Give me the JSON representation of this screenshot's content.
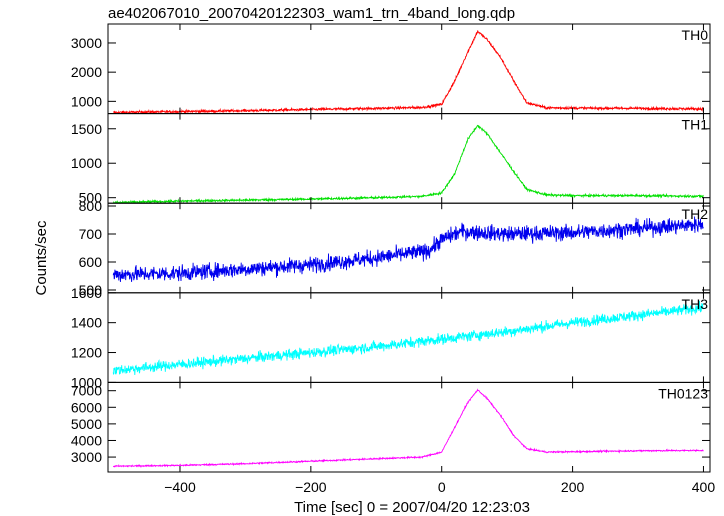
{
  "chart_data": {
    "type": "line",
    "title": "ae402067010_20070420122303_wam1_trn_4band_long.qdp",
    "xlabel": "Time [sec] 0 = 2007/04/20 12:23:03",
    "ylabel": "Counts/sec",
    "xlim": [
      -510,
      410
    ],
    "x_ticks": [
      -400,
      -200,
      0,
      200,
      400
    ],
    "grid": false,
    "panels": [
      {
        "name": "TH0",
        "color": "#ff0000",
        "ylim": [
          580,
          3650
        ],
        "y_ticks": [
          1000,
          2000,
          3000
        ],
        "noise": 60,
        "x": [
          -500,
          -400,
          -300,
          -200,
          -100,
          -30,
          0,
          20,
          40,
          55,
          70,
          90,
          110,
          130,
          160,
          200,
          300,
          400
        ],
        "y": [
          620,
          650,
          680,
          720,
          760,
          790,
          900,
          1700,
          2700,
          3400,
          3100,
          2500,
          1700,
          950,
          780,
          770,
          760,
          740
        ]
      },
      {
        "name": "TH1",
        "color": "#00e000",
        "ylim": [
          420,
          1720
        ],
        "y_ticks": [
          500,
          1000,
          1500
        ],
        "noise": 22,
        "x": [
          -500,
          -400,
          -300,
          -200,
          -100,
          -30,
          0,
          20,
          40,
          55,
          70,
          90,
          110,
          130,
          160,
          200,
          300,
          400
        ],
        "y": [
          430,
          450,
          465,
          480,
          500,
          520,
          570,
          850,
          1350,
          1550,
          1420,
          1150,
          880,
          620,
          540,
          530,
          530,
          520
        ]
      },
      {
        "name": "TH2",
        "color": "#0000ee",
        "ylim": [
          490,
          810
        ],
        "y_ticks": [
          500,
          600,
          700,
          800
        ],
        "noise": 40,
        "x": [
          -500,
          -400,
          -300,
          -200,
          -100,
          -20,
          0,
          30,
          60,
          100,
          200,
          300,
          400
        ],
        "y": [
          555,
          560,
          575,
          590,
          615,
          640,
          680,
          710,
          705,
          700,
          705,
          720,
          735
        ]
      },
      {
        "name": "TH3",
        "color": "#00ffff",
        "ylim": [
          1000,
          1600
        ],
        "y_ticks": [
          1000,
          1200,
          1400,
          1600
        ],
        "noise": 50,
        "x": [
          -500,
          -400,
          -300,
          -200,
          -100,
          0,
          100,
          200,
          300,
          400
        ],
        "y": [
          1080,
          1120,
          1160,
          1200,
          1240,
          1290,
          1340,
          1400,
          1450,
          1500
        ]
      },
      {
        "name": "TH0123",
        "color": "#ff00ff",
        "ylim": [
          2100,
          7500
        ],
        "y_ticks": [
          3000,
          4000,
          5000,
          6000,
          7000
        ],
        "noise": 60,
        "x": [
          -500,
          -400,
          -300,
          -200,
          -100,
          -30,
          0,
          20,
          40,
          55,
          70,
          90,
          110,
          130,
          160,
          200,
          300,
          400
        ],
        "y": [
          2450,
          2500,
          2600,
          2750,
          2900,
          3000,
          3300,
          4800,
          6300,
          7050,
          6500,
          5500,
          4300,
          3500,
          3300,
          3320,
          3380,
          3400
        ]
      }
    ]
  }
}
